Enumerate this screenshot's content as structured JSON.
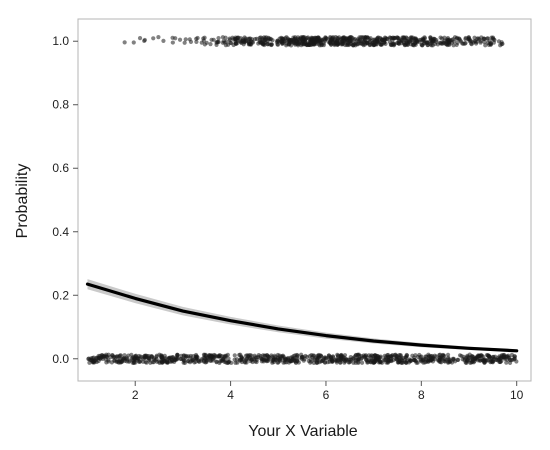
{
  "chart_data": {
    "type": "scatter",
    "title": "",
    "xlabel": "Your X Variable",
    "ylabel": "Probability",
    "xlim": [
      0.8,
      10.3
    ],
    "ylim": [
      -0.07,
      1.07
    ],
    "x_ticks": [
      2,
      4,
      6,
      8,
      10
    ],
    "y_ticks": [
      0.0,
      0.2,
      0.4,
      0.6,
      0.8,
      1.0
    ],
    "x_tick_labels": [
      "2",
      "4",
      "6",
      "8",
      "10"
    ],
    "y_tick_labels": [
      "0.0",
      "0.2",
      "0.4",
      "0.6",
      "0.8",
      "1.0"
    ],
    "grid": false,
    "legend": "none",
    "points": {
      "x_range": [
        1,
        10
      ],
      "outcome_values": [
        0,
        1
      ],
      "jitter_y": 0.013,
      "color": "#1a1a1a",
      "opacity": 0.55
    },
    "fit_curve": {
      "type": "logistic",
      "x": [
        1,
        2,
        3,
        4,
        5,
        6,
        7,
        8,
        9,
        10
      ],
      "y": [
        0.235,
        0.19,
        0.15,
        0.12,
        0.094,
        0.073,
        0.056,
        0.043,
        0.033,
        0.025
      ],
      "color": "#000000",
      "band_color": "#bdbdbd"
    },
    "panel_border_color": "#b5b5b5"
  }
}
